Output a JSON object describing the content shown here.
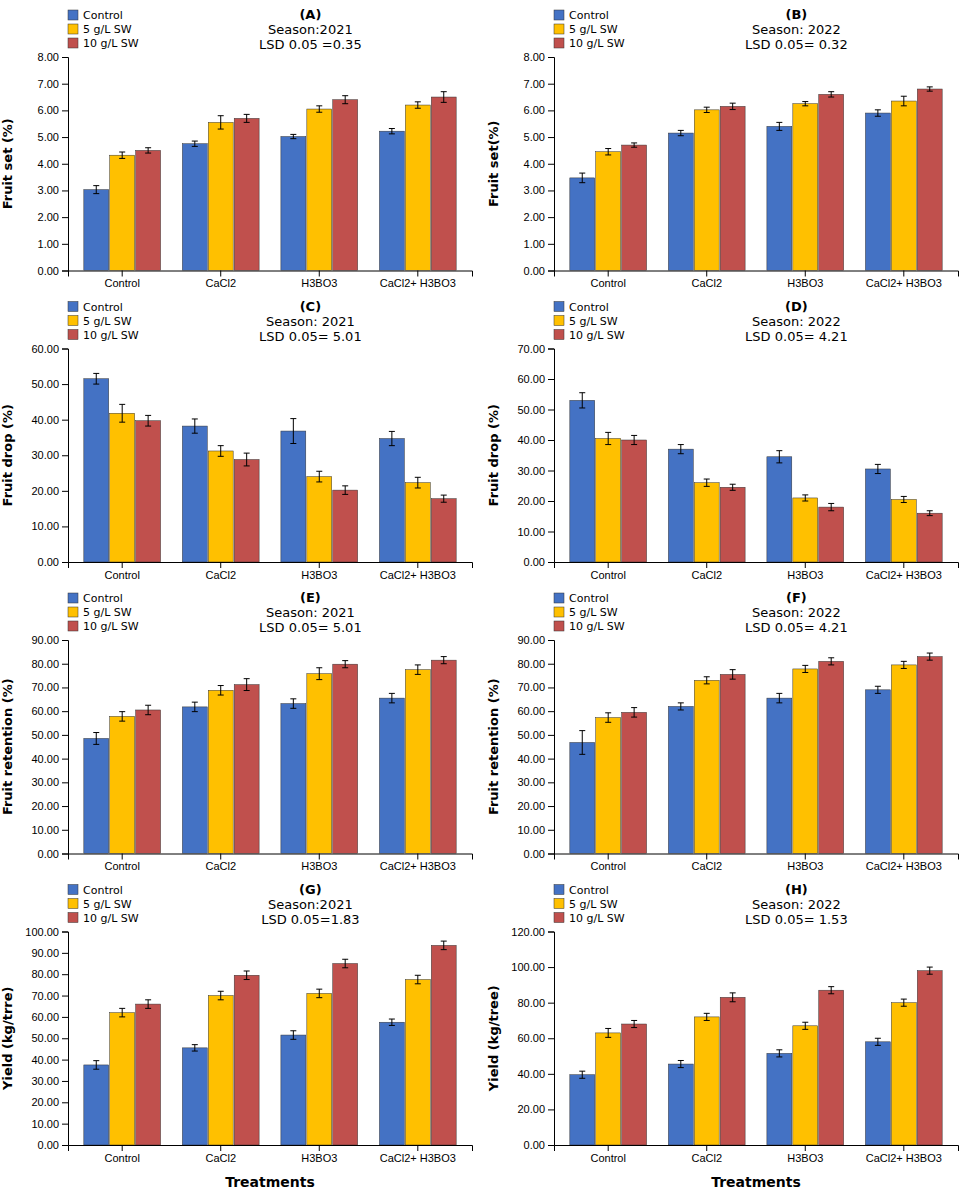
{
  "chart_data": [
    {
      "type": "bar",
      "ylabel": "Fruit set (%)",
      "annotations": [
        "(A)",
        "Season:2021",
        "LSD 0.05 =0.35"
      ],
      "categories": [
        "Control",
        "CaCl2",
        "H3BO3",
        "CaCl2+ H3BO3"
      ],
      "series": [
        {
          "name": "Control",
          "color": "#4472C4",
          "values": [
            3.03,
            4.75,
            5.02,
            5.22
          ],
          "errors": [
            0.15,
            0.1,
            0.08,
            0.1
          ]
        },
        {
          "name": "5 g/L SW",
          "color": "#FFC000",
          "values": [
            4.32,
            5.55,
            6.05,
            6.2
          ],
          "errors": [
            0.12,
            0.25,
            0.12,
            0.12
          ]
        },
        {
          "name": "10 g/L SW",
          "color": "#C0504D",
          "values": [
            4.5,
            5.7,
            6.4,
            6.5
          ],
          "errors": [
            0.1,
            0.15,
            0.15,
            0.2
          ]
        }
      ],
      "ylim": [
        0,
        8
      ],
      "yticks": [
        {
          "value": 0,
          "label": "0.00"
        },
        {
          "value": 1,
          "label": "1.00"
        },
        {
          "value": 2,
          "label": "2.00"
        },
        {
          "value": 3,
          "label": "3.00"
        },
        {
          "value": 4,
          "label": "4.00"
        },
        {
          "value": 5,
          "label": "5.00"
        },
        {
          "value": 6,
          "label": "6.00"
        },
        {
          "value": 7,
          "label": "7.00"
        },
        {
          "value": 8,
          "label": "8.00"
        }
      ],
      "legend": "upper left",
      "grid": false
    },
    {
      "type": "bar",
      "ylabel": "Fruit set(%)",
      "annotations": [
        "(B)",
        "Season: 2022",
        "LSD 0.05= 0.32"
      ],
      "categories": [
        "Control",
        "CaCl2",
        "H3BO3",
        "CaCl2+ H3BO3"
      ],
      "series": [
        {
          "name": "Control",
          "color": "#4472C4",
          "values": [
            3.47,
            5.15,
            5.4,
            5.9
          ],
          "errors": [
            0.18,
            0.1,
            0.15,
            0.12
          ]
        },
        {
          "name": "5 g/L SW",
          "color": "#FFC000",
          "values": [
            4.45,
            6.02,
            6.25,
            6.35
          ],
          "errors": [
            0.12,
            0.1,
            0.08,
            0.18
          ]
        },
        {
          "name": "10 g/L SW",
          "color": "#C0504D",
          "values": [
            4.7,
            6.15,
            6.6,
            6.8
          ],
          "errors": [
            0.08,
            0.12,
            0.1,
            0.08
          ]
        }
      ],
      "ylim": [
        0,
        8
      ],
      "yticks": [
        {
          "value": 0,
          "label": "0.00"
        },
        {
          "value": 1,
          "label": "1.00"
        },
        {
          "value": 2,
          "label": "2.00"
        },
        {
          "value": 3,
          "label": "3.00"
        },
        {
          "value": 4,
          "label": "4.00"
        },
        {
          "value": 5,
          "label": "5.00"
        },
        {
          "value": 6,
          "label": "6.00"
        },
        {
          "value": 7,
          "label": "7.00"
        },
        {
          "value": 8,
          "label": "8.00"
        }
      ],
      "legend": "upper left",
      "grid": false
    },
    {
      "type": "bar",
      "ylabel": "Fruit drop (%)",
      "annotations": [
        "(C)",
        "Season: 2021",
        "LSD 0.05= 5.01"
      ],
      "categories": [
        "Control",
        "CaCl2",
        "H3BO3",
        "CaCl2+ H3BO3"
      ],
      "series": [
        {
          "name": "Control",
          "color": "#4472C4",
          "values": [
            51.5,
            38.2,
            36.8,
            34.7
          ],
          "errors": [
            1.5,
            2.0,
            3.5,
            2.0
          ]
        },
        {
          "name": "5 g/L SW",
          "color": "#FFC000",
          "values": [
            41.8,
            31.2,
            24.0,
            22.3
          ],
          "errors": [
            2.5,
            1.5,
            1.5,
            1.5
          ]
        },
        {
          "name": "10 g/L SW",
          "color": "#C0504D",
          "values": [
            39.7,
            28.8,
            20.2,
            17.8
          ],
          "errors": [
            1.5,
            1.8,
            1.2,
            1.0
          ]
        }
      ],
      "ylim": [
        0,
        60
      ],
      "yticks": [
        {
          "value": 0,
          "label": "0.00"
        },
        {
          "value": 10,
          "label": "10.00"
        },
        {
          "value": 20,
          "label": "20.00"
        },
        {
          "value": 30,
          "label": "30.00"
        },
        {
          "value": 40,
          "label": "40.00"
        },
        {
          "value": 50,
          "label": "50.00"
        },
        {
          "value": 60,
          "label": "60.00"
        }
      ],
      "legend": "upper left",
      "grid": false
    },
    {
      "type": "bar",
      "ylabel": "Fruit drop (%)",
      "annotations": [
        "(D)",
        "Season: 2022",
        "LSD 0.05= 4.21"
      ],
      "categories": [
        "Control",
        "CaCl2",
        "H3BO3",
        "CaCl2+ H3BO3"
      ],
      "series": [
        {
          "name": "Control",
          "color": "#4472C4",
          "values": [
            53.0,
            37.0,
            34.5,
            30.5
          ],
          "errors": [
            2.5,
            1.5,
            2.0,
            1.5
          ]
        },
        {
          "name": "5 g/L SW",
          "color": "#FFC000",
          "values": [
            40.5,
            26.0,
            21.0,
            20.5
          ],
          "errors": [
            2.0,
            1.2,
            1.0,
            1.0
          ]
        },
        {
          "name": "10 g/L SW",
          "color": "#C0504D",
          "values": [
            40.0,
            24.5,
            18.0,
            16.0
          ],
          "errors": [
            1.5,
            1.0,
            1.2,
            0.8
          ]
        }
      ],
      "ylim": [
        0,
        70
      ],
      "yticks": [
        {
          "value": 0,
          "label": "0.00"
        },
        {
          "value": 10,
          "label": "10.00"
        },
        {
          "value": 20,
          "label": "20.00"
        },
        {
          "value": 30,
          "label": "30.00"
        },
        {
          "value": 40,
          "label": "40.00"
        },
        {
          "value": 50,
          "label": "50.00"
        },
        {
          "value": 60,
          "label": "60.00"
        },
        {
          "value": 70,
          "label": "70.00"
        }
      ],
      "legend": "upper left",
      "grid": false
    },
    {
      "type": "bar",
      "ylabel": "Fruit retention (%)",
      "annotations": [
        "(E)",
        "Season: 2021",
        "LSD 0.05= 5.01"
      ],
      "categories": [
        "Control",
        "CaCl2",
        "H3BO3",
        "CaCl2+ H3BO3"
      ],
      "series": [
        {
          "name": "Control",
          "color": "#4472C4",
          "values": [
            48.5,
            61.8,
            63.2,
            65.5
          ],
          "errors": [
            2.5,
            2.0,
            2.0,
            2.0
          ]
        },
        {
          "name": "5 g/L SW",
          "color": "#FFC000",
          "values": [
            57.8,
            68.8,
            75.8,
            77.5
          ],
          "errors": [
            2.0,
            2.0,
            2.5,
            2.0
          ]
        },
        {
          "name": "10 g/L SW",
          "color": "#C0504D",
          "values": [
            60.5,
            71.2,
            79.8,
            81.5
          ],
          "errors": [
            2.0,
            2.5,
            1.5,
            1.5
          ]
        }
      ],
      "ylim": [
        0,
        90
      ],
      "yticks": [
        {
          "value": 0,
          "label": "0.00"
        },
        {
          "value": 10,
          "label": "10.00"
        },
        {
          "value": 20,
          "label": "20.00"
        },
        {
          "value": 30,
          "label": "30.00"
        },
        {
          "value": 40,
          "label": "40.00"
        },
        {
          "value": 50,
          "label": "50.00"
        },
        {
          "value": 60,
          "label": "60.00"
        },
        {
          "value": 70,
          "label": "70.00"
        },
        {
          "value": 80,
          "label": "80.00"
        },
        {
          "value": 90,
          "label": "90.00"
        }
      ],
      "legend": "upper left",
      "grid": false
    },
    {
      "type": "bar",
      "ylabel": "Fruit retention (%)",
      "annotations": [
        "(F)",
        "Season: 2022",
        "LSD 0.05= 4.21"
      ],
      "categories": [
        "Control",
        "CaCl2",
        "H3BO3",
        "CaCl2+ H3BO3"
      ],
      "series": [
        {
          "name": "Control",
          "color": "#4472C4",
          "values": [
            46.8,
            62.0,
            65.5,
            69.0
          ],
          "errors": [
            5.0,
            1.5,
            2.0,
            1.5
          ]
        },
        {
          "name": "5 g/L SW",
          "color": "#FFC000",
          "values": [
            57.3,
            73.0,
            77.8,
            79.5
          ],
          "errors": [
            2.0,
            1.5,
            1.5,
            1.5
          ]
        },
        {
          "name": "10 g/L SW",
          "color": "#C0504D",
          "values": [
            59.5,
            75.5,
            81.0,
            83.0
          ],
          "errors": [
            2.0,
            2.0,
            1.5,
            1.5
          ]
        }
      ],
      "ylim": [
        0,
        90
      ],
      "yticks": [
        {
          "value": 0,
          "label": "0.00"
        },
        {
          "value": 10,
          "label": "10.00"
        },
        {
          "value": 20,
          "label": "20.00"
        },
        {
          "value": 30,
          "label": "30.00"
        },
        {
          "value": 40,
          "label": "40.00"
        },
        {
          "value": 50,
          "label": "50.00"
        },
        {
          "value": 60,
          "label": "60.00"
        },
        {
          "value": 70,
          "label": "70.00"
        },
        {
          "value": 80,
          "label": "80.00"
        },
        {
          "value": 90,
          "label": "90.00"
        }
      ],
      "legend": "upper left",
      "grid": false
    },
    {
      "type": "bar",
      "ylabel": "Yield (kg/trre)",
      "xlabel": "Treatments",
      "annotations": [
        "(G)",
        "Season:2021",
        "LSD 0.05=1.83"
      ],
      "categories": [
        "Control",
        "CaCl2",
        "H3BO3",
        "CaCl2+ H3BO3"
      ],
      "series": [
        {
          "name": "Control",
          "color": "#4472C4",
          "values": [
            37.5,
            45.5,
            51.5,
            57.5
          ],
          "errors": [
            2.0,
            1.5,
            2.0,
            1.5
          ]
        },
        {
          "name": "5 g/L SW",
          "color": "#FFC000",
          "values": [
            62.0,
            70.0,
            71.0,
            77.5
          ],
          "errors": [
            2.0,
            2.0,
            2.0,
            2.0
          ]
        },
        {
          "name": "10 g/L SW",
          "color": "#C0504D",
          "values": [
            66.0,
            79.5,
            85.0,
            93.5
          ],
          "errors": [
            2.0,
            2.0,
            2.0,
            2.0
          ]
        }
      ],
      "ylim": [
        0,
        100
      ],
      "yticks": [
        {
          "value": 0,
          "label": "0.00"
        },
        {
          "value": 10,
          "label": "10.00"
        },
        {
          "value": 20,
          "label": "20.00"
        },
        {
          "value": 30,
          "label": "30.00"
        },
        {
          "value": 40,
          "label": "40.00"
        },
        {
          "value": 50,
          "label": "50.00"
        },
        {
          "value": 60,
          "label": "60.00"
        },
        {
          "value": 70,
          "label": "70.00"
        },
        {
          "value": 80,
          "label": "80.00"
        },
        {
          "value": 90,
          "label": "90.00"
        },
        {
          "value": 100,
          "label": "100.00"
        }
      ],
      "legend": "upper left",
      "grid": false
    },
    {
      "type": "bar",
      "ylabel": "Yield (kg/tree)",
      "xlabel": "Treatments",
      "annotations": [
        "(H)",
        "Season: 2022",
        "LSD 0.05= 1.53"
      ],
      "categories": [
        "Control",
        "CaCl2",
        "H3BO3",
        "CaCl2+ H3BO3"
      ],
      "series": [
        {
          "name": "Control",
          "color": "#4472C4",
          "values": [
            39.5,
            45.5,
            51.5,
            58.0
          ],
          "errors": [
            2.0,
            2.0,
            2.0,
            2.0
          ]
        },
        {
          "name": "5 g/L SW",
          "color": "#FFC000",
          "values": [
            63.0,
            72.0,
            67.0,
            80.0
          ],
          "errors": [
            2.5,
            2.0,
            2.0,
            2.0
          ]
        },
        {
          "name": "10 g/L SW",
          "color": "#C0504D",
          "values": [
            68.0,
            83.0,
            87.0,
            98.0
          ],
          "errors": [
            2.0,
            2.5,
            2.0,
            2.0
          ]
        }
      ],
      "ylim": [
        0,
        120
      ],
      "yticks": [
        {
          "value": 0,
          "label": "0.00"
        },
        {
          "value": 20,
          "label": "20.00"
        },
        {
          "value": 40,
          "label": "40.00"
        },
        {
          "value": 60,
          "label": "60.00"
        },
        {
          "value": 80,
          "label": "80.00"
        },
        {
          "value": 100,
          "label": "100.00"
        },
        {
          "value": 120,
          "label": "120.00"
        }
      ],
      "legend": "upper left",
      "grid": false
    }
  ]
}
